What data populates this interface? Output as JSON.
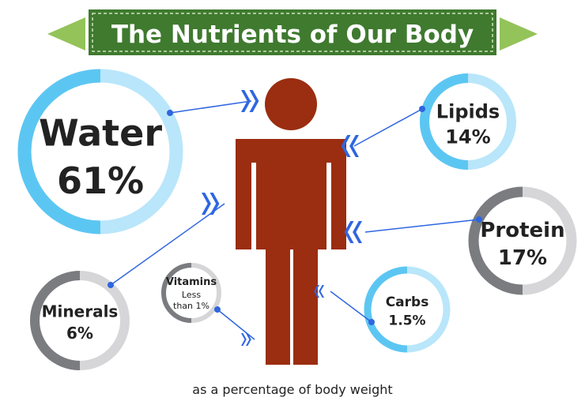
{
  "title": "The Nutrients of Our Body",
  "footnote": "as a percentage of body weight",
  "colors": {
    "banner": "#3f7a2f",
    "banner_stitch": "#cfe3b8",
    "banner_tab": "#94c35a",
    "figure": "#9b2d10",
    "ring_blue": "#5cc6f2",
    "ring_blue_light": "#b9e6fa",
    "ring_gray": "#7a7c80",
    "ring_gray_light": "#d6d6d8",
    "arrow": "#2f66e0"
  },
  "chart_data": {
    "type": "pie",
    "title": "The Nutrients of Our Body",
    "subtitle": "as a percentage of body weight",
    "unit": "%",
    "categories": [
      "Water",
      "Lipids",
      "Protein",
      "Minerals",
      "Vitamins",
      "Carbs"
    ],
    "values": [
      61,
      14,
      17,
      6,
      1,
      1.5
    ],
    "value_labels": [
      "61%",
      "14%",
      "17%",
      "6%",
      "Less than 1%",
      "1.5%"
    ],
    "items": [
      {
        "name": "Water",
        "value_label": "61%",
        "value": 61,
        "theme": "blue"
      },
      {
        "name": "Lipids",
        "value_label": "14%",
        "value": 14,
        "theme": "blue"
      },
      {
        "name": "Protein",
        "value_label": "17%",
        "value": 17,
        "theme": "gray"
      },
      {
        "name": "Minerals",
        "value_label": "6%",
        "value": 6,
        "theme": "gray"
      },
      {
        "name": "Vitamins",
        "value_label": "Less than 1%",
        "value": 1,
        "theme": "gray"
      },
      {
        "name": "Carbs",
        "value_label": "1.5%",
        "value": 1.5,
        "theme": "blue"
      }
    ]
  }
}
